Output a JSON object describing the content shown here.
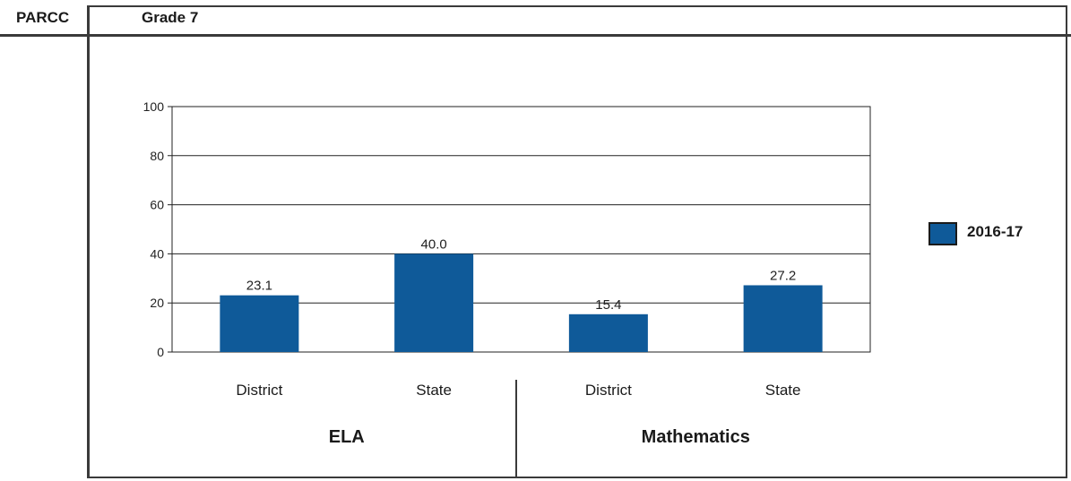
{
  "header": {
    "test_label": "PARCC",
    "grade_label": "Grade 7"
  },
  "colors": {
    "bar": "#0f5a99",
    "grid": "#222222",
    "frame": "#3a3a3a"
  },
  "chart_data": {
    "type": "bar",
    "title": "",
    "xlabel": "",
    "ylabel": "",
    "ylim": [
      0,
      100
    ],
    "yticks": [
      0,
      20,
      40,
      60,
      80,
      100
    ],
    "categories": [
      "District",
      "State",
      "District",
      "State"
    ],
    "groups": [
      {
        "label": "ELA",
        "categories": [
          "District",
          "State"
        ]
      },
      {
        "label": "Mathematics",
        "categories": [
          "District",
          "State"
        ]
      }
    ],
    "series": [
      {
        "name": "2016-17",
        "values": [
          23.1,
          40.0,
          15.4,
          27.2
        ],
        "value_labels": [
          "23.1",
          "40.0",
          "15.4",
          "27.2"
        ]
      }
    ],
    "grid": true,
    "legend_position": "right"
  }
}
